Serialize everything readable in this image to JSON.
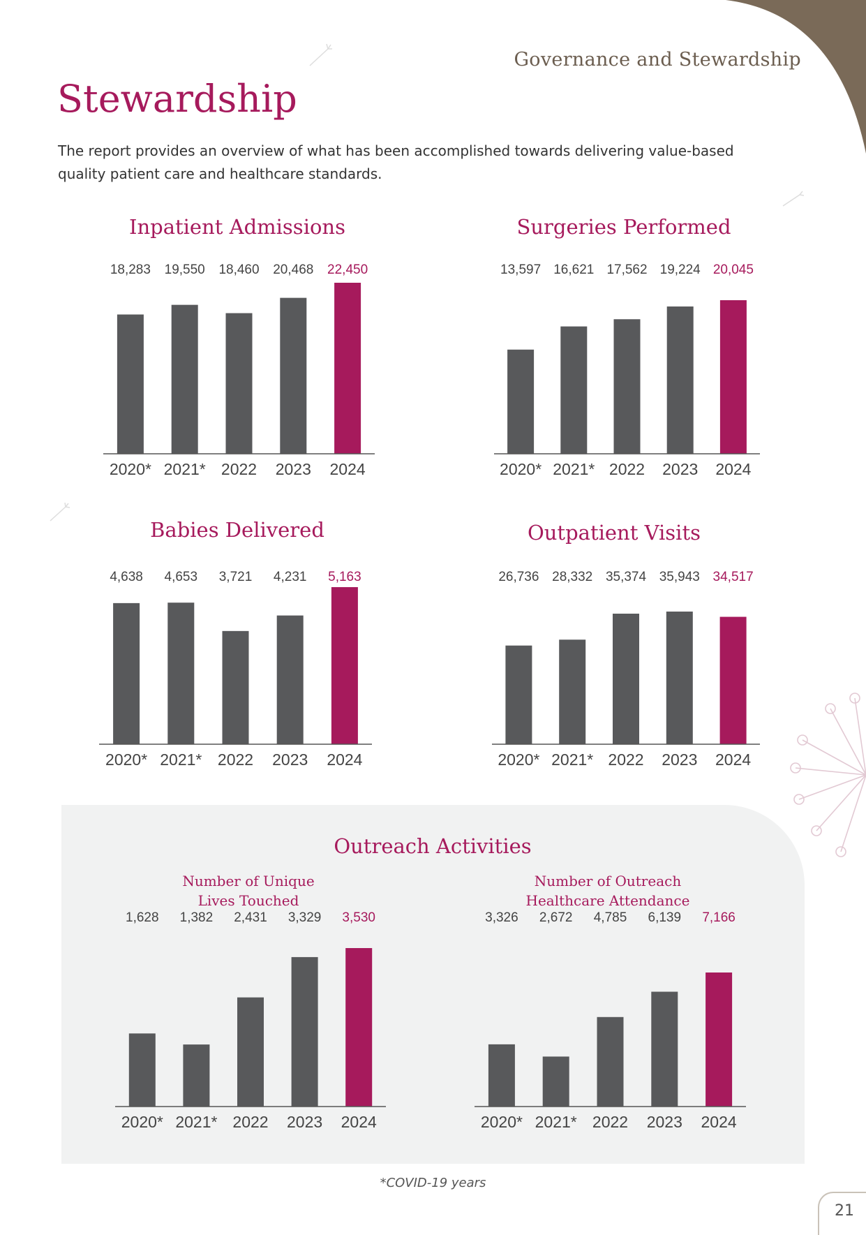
{
  "header": {
    "section": "Governance and Stewardship",
    "title": "Stewardship",
    "intro": "The report provides an overview of what has been accomplished towards delivering value-based quality patient care and healthcare standards."
  },
  "colors": {
    "bar": "#58595b",
    "highlight": "#a61a5c",
    "panel": "#f1f2f2",
    "corner": "#7a6a58"
  },
  "outreach": {
    "title": "Outreach Activities"
  },
  "chart_data": [
    {
      "id": "inpatient",
      "type": "bar",
      "title": "Inpatient Admissions",
      "categories": [
        "2020*",
        "2021*",
        "2022",
        "2023",
        "2024"
      ],
      "labels": [
        "18,283",
        "19,550",
        "18,460",
        "20,468",
        "22,450"
      ],
      "values": [
        18283,
        19550,
        18460,
        20468,
        22450
      ],
      "highlight_index": 4
    },
    {
      "id": "surgeries",
      "type": "bar",
      "title": "Surgeries Performed",
      "categories": [
        "2020*",
        "2021*",
        "2022",
        "2023",
        "2024"
      ],
      "labels": [
        "13,597",
        "16,621",
        "17,562",
        "19,224",
        "20,045"
      ],
      "values": [
        13597,
        16621,
        17562,
        19224,
        20045
      ],
      "highlight_index": 4
    },
    {
      "id": "babies",
      "type": "bar",
      "title": "Babies Delivered",
      "categories": [
        "2020*",
        "2021*",
        "2022",
        "2023",
        "2024"
      ],
      "labels": [
        "4,638",
        "4,653",
        "3,721",
        "4,231",
        "5,163"
      ],
      "values": [
        4638,
        4653,
        3721,
        4231,
        5163
      ],
      "highlight_index": 4
    },
    {
      "id": "outpatient",
      "type": "bar",
      "title": "Outpatient Visits",
      "categories": [
        "2020*",
        "2021*",
        "2022",
        "2023",
        "2024"
      ],
      "labels": [
        "26,736",
        "28,332",
        "35,374",
        "35,943",
        "34,517"
      ],
      "values": [
        26736,
        28332,
        35374,
        35943,
        34517
      ],
      "highlight_index": 4
    },
    {
      "id": "lives",
      "type": "bar",
      "title": "Number of Unique\nLives Touched",
      "categories": [
        "2020*",
        "2021*",
        "2022",
        "2023",
        "2024"
      ],
      "labels": [
        "1,628",
        "1,382",
        "2,431",
        "3,329",
        "3,530"
      ],
      "values": [
        1628,
        1382,
        2431,
        3329,
        3530
      ],
      "highlight_index": 4
    },
    {
      "id": "attendance",
      "type": "bar",
      "title": "Number of Outreach\nHealthcare Attendance",
      "categories": [
        "2020*",
        "2021*",
        "2022",
        "2023",
        "2024"
      ],
      "labels": [
        "3,326",
        "2,672",
        "4,785",
        "6,139",
        "7,166"
      ],
      "values": [
        3326,
        2672,
        4785,
        6139,
        7166
      ],
      "highlight_index": 4
    }
  ],
  "footnote": "*COVID-19 years",
  "page_number": "21"
}
